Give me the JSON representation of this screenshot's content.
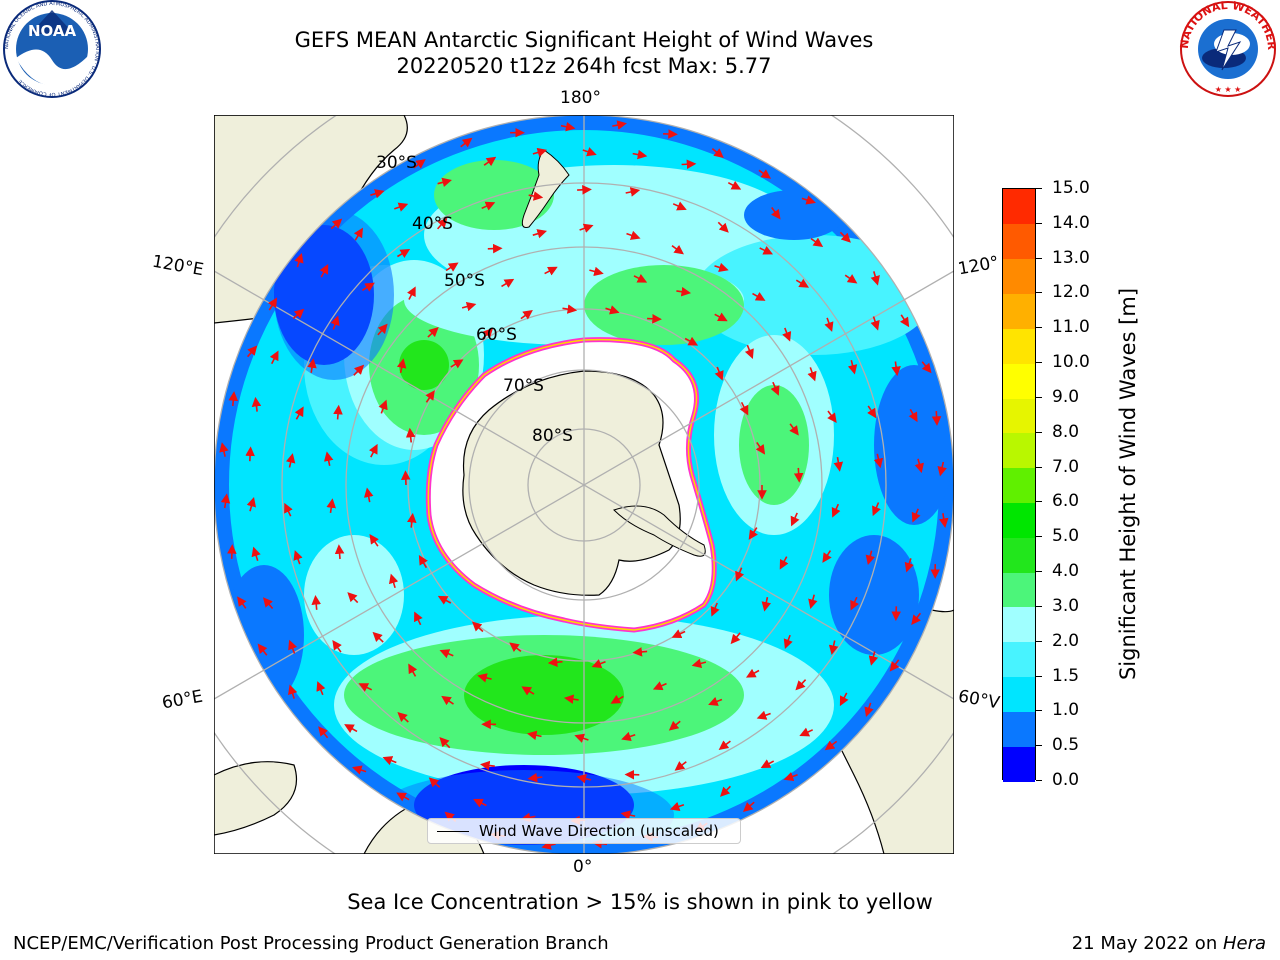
{
  "header": {
    "title_line_1": "GEFS MEAN Antarctic Significant Height of Wind Waves",
    "title_line_2": "20220520 t12z 264h fcst   Max: 5.77"
  },
  "logos": {
    "noaa": {
      "name": "noaa-logo",
      "text": "NOAA",
      "ring_text": "NATIONAL OCEANIC AND ATMOSPHERIC ADMINISTRATION · U.S. DEPARTMENT OF COMMERCE"
    },
    "nws": {
      "name": "nws-logo",
      "ring_text": "NATIONAL WEATHER SERVICE"
    }
  },
  "map": {
    "projection": "south-polar-stereographic",
    "longitude_labels": {
      "top": "180°",
      "bottom": "0°",
      "upper_left": "120°E",
      "upper_right": "120°",
      "lower_left": "60°E",
      "lower_right": "60°V"
    },
    "latitude_labels": [
      "30°S",
      "40°S",
      "50°S",
      "60°S",
      "70°S",
      "80°S"
    ],
    "colors": {
      "land": "#efefdb",
      "ice": "#ffffff",
      "ice_edge": [
        "#ff33cc",
        "#ffd700"
      ],
      "arrows": "#ee1111",
      "graticule": "#b0b0b0"
    }
  },
  "colorbar": {
    "label": "Significant Height of Wind Waves [m]",
    "ticks": [
      "0.0",
      "0.5",
      "1.0",
      "1.5",
      "2.0",
      "3.0",
      "4.0",
      "5.0",
      "6.0",
      "7.0",
      "8.0",
      "9.0",
      "10.0",
      "11.0",
      "12.0",
      "13.0",
      "14.0",
      "15.0"
    ],
    "colors": [
      "#0000ff",
      "#0a78ff",
      "#00e5ff",
      "#48f3ff",
      "#a0ffff",
      "#4cf57a",
      "#22e61c",
      "#00e600",
      "#60f000",
      "#b9f700",
      "#e6f500",
      "#ffff00",
      "#ffe400",
      "#ffb000",
      "#ff8a00",
      "#ff5a00",
      "#ff2a00"
    ]
  },
  "legend": {
    "text": "Wind Wave Direction (unscaled)"
  },
  "captions": {
    "sub": "Sea Ice Concentration > 15% is shown in pink to yellow",
    "footer_left": "NCEP/EMC/Verification Post Processing Product Generation Branch",
    "footer_right_prefix": "21 May 2022 on ",
    "footer_right_host": "Hera"
  }
}
